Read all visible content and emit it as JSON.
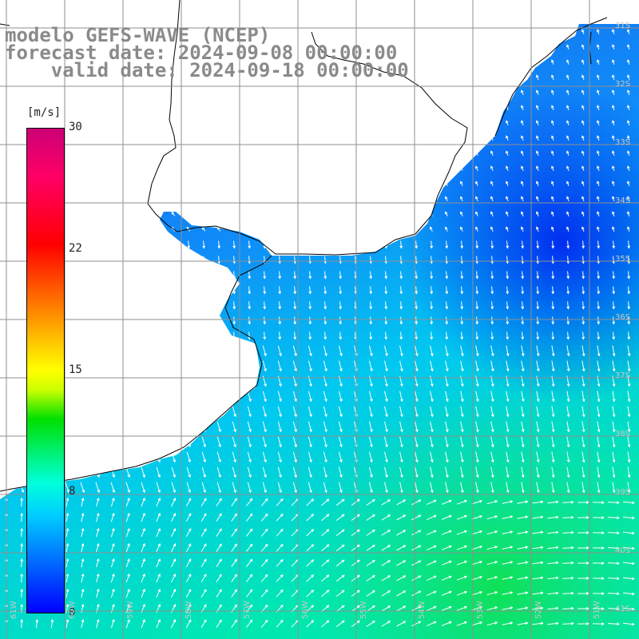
{
  "title": {
    "line1": "modelo GEFS-WAVE (NCEP)",
    "line2": "forecast date: 2024-09-08 00:00:00",
    "line3": "    valid date: 2024-09-18 00:00:00"
  },
  "colorbar": {
    "unit": "[m/s]",
    "min": 0,
    "max": 30,
    "ticks": [
      "30",
      "22",
      "15",
      "8",
      "0"
    ],
    "colors": [
      "#0000ff",
      "#00ccff",
      "#00ffdd",
      "#00e000",
      "#ffff00",
      "#ff8000",
      "#ff0000",
      "#cc0077"
    ]
  },
  "map": {
    "lat_labels": [
      "31S",
      "32S",
      "33S",
      "34S",
      "35S",
      "36S",
      "37S",
      "38S",
      "39S",
      "40S",
      "41S"
    ],
    "lon_labels": [
      "61W",
      "60W",
      "59W",
      "58W",
      "57W",
      "56W",
      "55W",
      "54W",
      "53W",
      "52W",
      "51W"
    ],
    "ocean_color": "#1a6bf0",
    "land_color": "#ffffff",
    "grid": true
  }
}
